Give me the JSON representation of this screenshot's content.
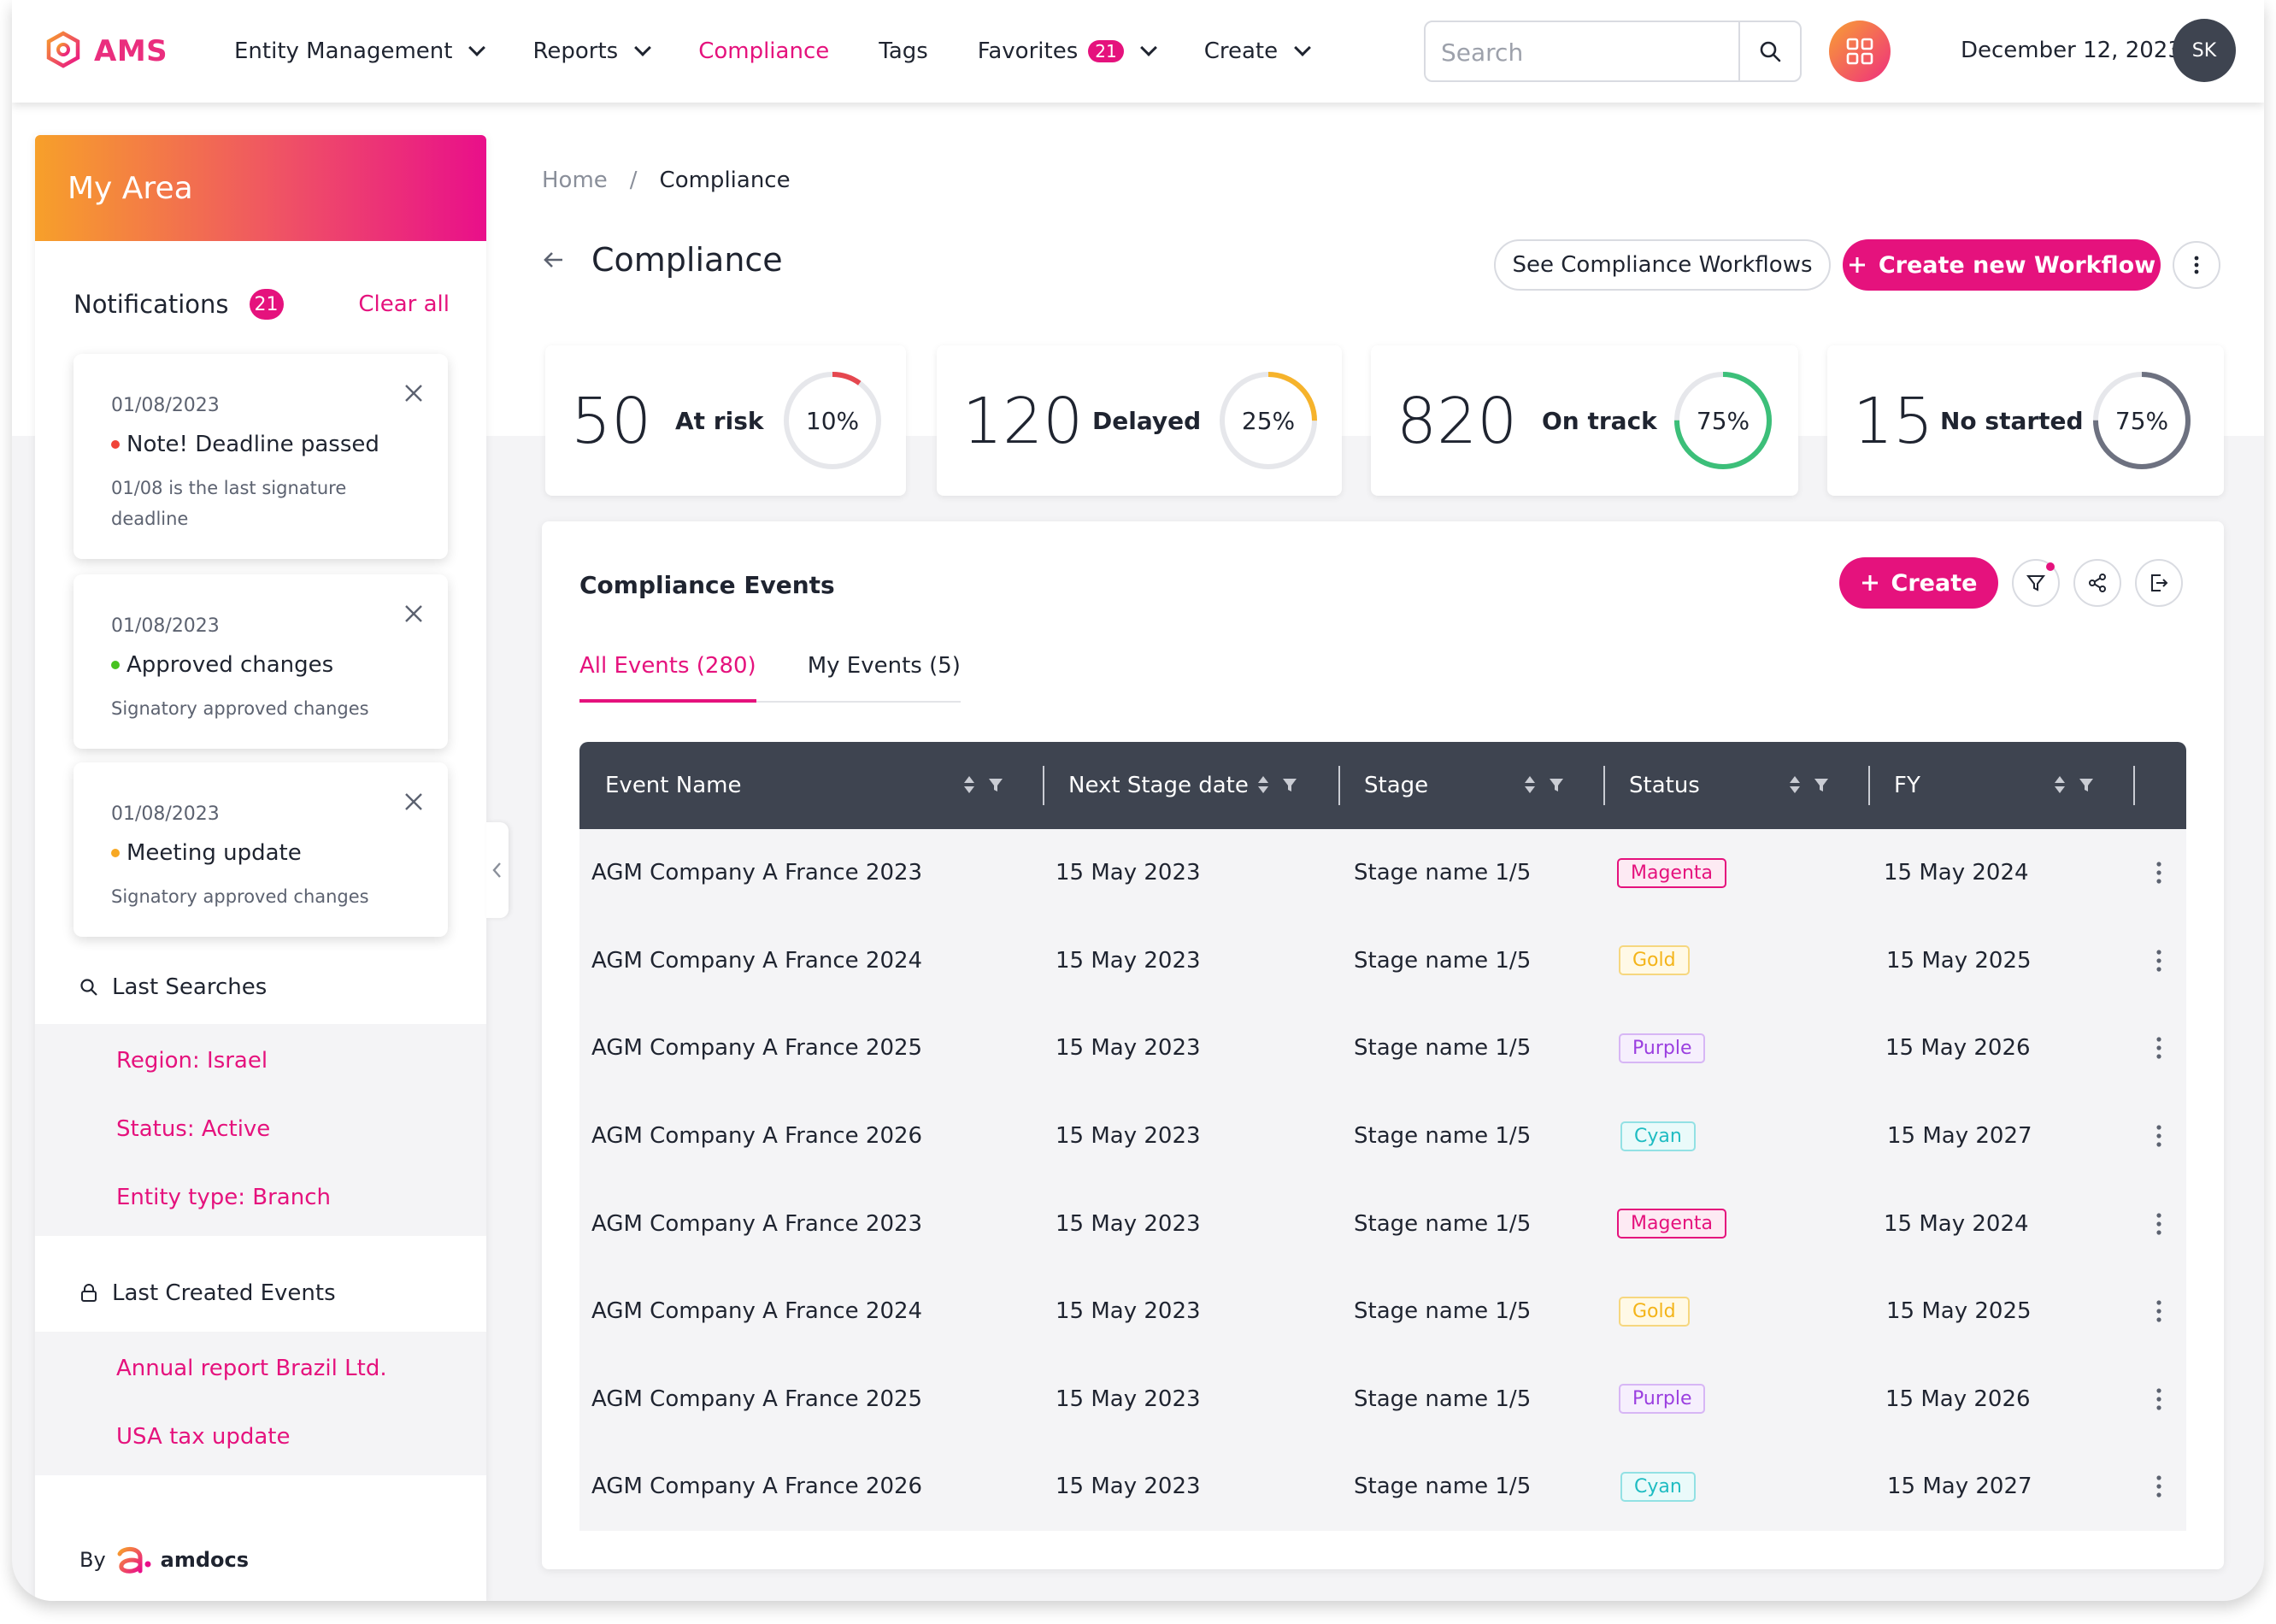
{
  "app": {
    "name": "AMS",
    "brand_color": "#e5127d"
  },
  "nav": {
    "items": [
      {
        "label": "Entity Management",
        "dropdown": true
      },
      {
        "label": "Reports",
        "dropdown": true
      },
      {
        "label": "Compliance",
        "active": true
      },
      {
        "label": "Tags"
      },
      {
        "label": "Favorites",
        "badge": "21",
        "dropdown": true
      },
      {
        "label": "Create",
        "dropdown": true
      }
    ]
  },
  "search": {
    "placeholder": "Search",
    "value": ""
  },
  "header": {
    "date": "December 12, 2023",
    "avatar_initials": "SK"
  },
  "sidebar": {
    "title": "My Area",
    "notifications": {
      "title": "Notifications",
      "count": "21",
      "clear_label": "Clear all",
      "cards": [
        {
          "date": "01/08/2023",
          "title": "Note! Deadline passed",
          "dot_color": "#f04438",
          "desc": "01/08 is the last signature deadline"
        },
        {
          "date": "01/08/2023",
          "title": "Approved changes",
          "dot_color": "#47c21f",
          "desc": "Signatory approved changes"
        },
        {
          "date": "01/08/2023",
          "title": "Meeting update",
          "dot_color": "#f7a823",
          "desc": "Signatory approved changes"
        }
      ]
    },
    "last_searches": {
      "title": "Last Searches",
      "items": [
        "Region: Israel",
        "Status: Active",
        "Entity type: Branch"
      ]
    },
    "last_created": {
      "title": "Last Created Events",
      "items": [
        "Annual report Brazil Ltd.",
        "USA tax update"
      ]
    },
    "footer": {
      "by": "By",
      "company": "amdocs"
    }
  },
  "breadcrumb": {
    "home": "Home",
    "separator": "/",
    "current": "Compliance"
  },
  "page": {
    "title": "Compliance",
    "see_workflows_label": "See Compliance Workflows",
    "create_workflow_label": "Create new Workflow"
  },
  "stats": [
    {
      "value": "50",
      "label": "At risk",
      "percent_label": "10%",
      "percent": 10,
      "color": "#e5474f"
    },
    {
      "value": "120",
      "label": "Delayed",
      "percent_label": "25%",
      "percent": 25,
      "color": "#f6b32b"
    },
    {
      "value": "820",
      "label": "On track",
      "percent_label": "75%",
      "percent": 75,
      "color": "#3cbf79"
    },
    {
      "value": "15",
      "label": "No started",
      "percent_label": "75%",
      "percent": 75,
      "color": "#6d7180"
    }
  ],
  "events": {
    "title": "Compliance Events",
    "create_label": "Create",
    "tabs": [
      {
        "label": "All Events (280)",
        "active": true
      },
      {
        "label": "My Events (5)",
        "active": false
      }
    ],
    "columns": [
      "Event Name",
      "Next Stage date",
      "Stage",
      "Status",
      "FY"
    ],
    "rows": [
      {
        "name": "AGM Company A France 2023",
        "next": "15 May 2023",
        "stage": "Stage name 1/5",
        "status": "Magenta",
        "fy": "15 May 2024"
      },
      {
        "name": "AGM Company A France 2024",
        "next": "15 May 2023",
        "stage": "Stage name 1/5",
        "status": "Gold",
        "fy": "15 May 2025"
      },
      {
        "name": "AGM Company A France 2025",
        "next": "15 May 2023",
        "stage": "Stage name 1/5",
        "status": "Purple",
        "fy": "15 May 2026"
      },
      {
        "name": "AGM Company A France 2026",
        "next": "15 May 2023",
        "stage": "Stage name 1/5",
        "status": "Cyan",
        "fy": "15 May 2027"
      },
      {
        "name": "AGM Company A France 2023",
        "next": "15 May 2023",
        "stage": "Stage name 1/5",
        "status": "Magenta",
        "fy": "15 May 2024"
      },
      {
        "name": "AGM Company A France 2024",
        "next": "15 May 2023",
        "stage": "Stage name 1/5",
        "status": "Gold",
        "fy": "15 May 2025"
      },
      {
        "name": "AGM Company A France 2025",
        "next": "15 May 2023",
        "stage": "Stage name 1/5",
        "status": "Purple",
        "fy": "15 May 2026"
      },
      {
        "name": "AGM Company A France 2026",
        "next": "15 May 2023",
        "stage": "Stage name 1/5",
        "status": "Cyan",
        "fy": "15 May 2027"
      }
    ]
  }
}
